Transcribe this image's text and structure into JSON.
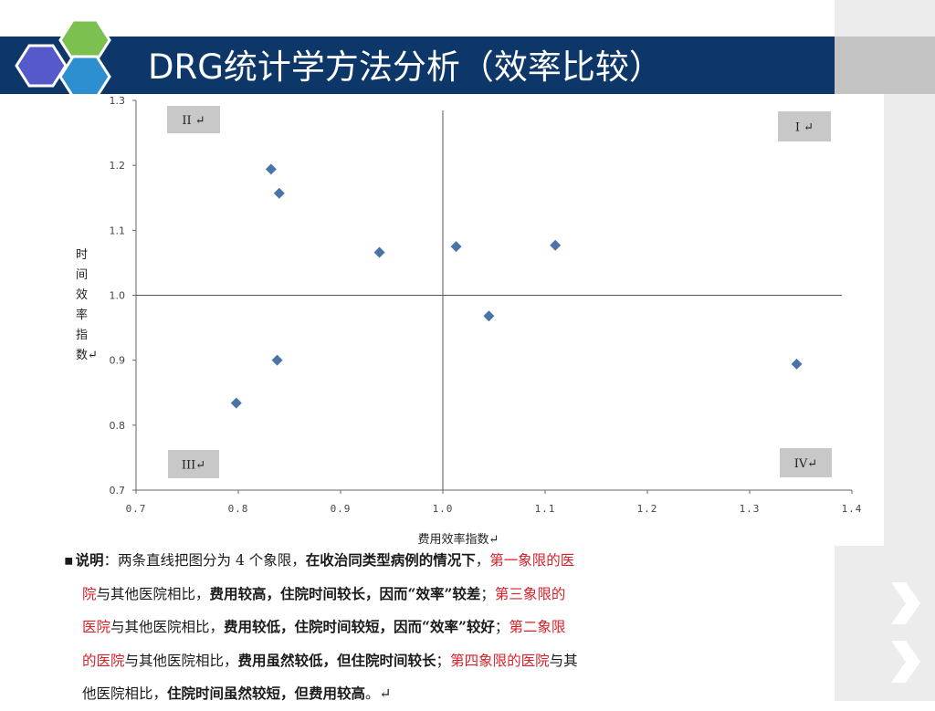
{
  "slide": {
    "title": "DRG统计学方法分析（效率比较）"
  },
  "chart_data": {
    "type": "scatter",
    "xlabel": "费用效率指数↵",
    "ylabel": [
      "时",
      "间",
      "效",
      "率",
      "指",
      "数↵"
    ],
    "xlim": [
      0.7,
      1.4
    ],
    "ylim": [
      0.7,
      1.3
    ],
    "x_ticks": [
      "0.7",
      "0.8",
      "0.9",
      "1.0",
      "1.1",
      "1.2",
      "1.3",
      "1.4"
    ],
    "y_ticks": [
      "0.7",
      "0.8",
      "0.9",
      "1.0",
      "1.1",
      "1.2",
      "1.3"
    ],
    "reference_lines": {
      "x": 1.0,
      "y": 1.0
    },
    "quadrant_labels": {
      "q1": "I ↵",
      "q2": "II ↵",
      "q3": "III↵",
      "q4": "IV↵"
    },
    "points": [
      {
        "x": 0.832,
        "y": 1.194
      },
      {
        "x": 0.84,
        "y": 1.157
      },
      {
        "x": 0.938,
        "y": 1.066
      },
      {
        "x": 1.013,
        "y": 1.075
      },
      {
        "x": 1.11,
        "y": 1.077
      },
      {
        "x": 1.045,
        "y": 0.968
      },
      {
        "x": 1.346,
        "y": 0.894
      },
      {
        "x": 0.838,
        "y": 0.9
      },
      {
        "x": 0.798,
        "y": 0.834
      }
    ],
    "marker_color": "#4a74a8",
    "grid": false
  },
  "note": {
    "bullet": "▪",
    "lines": [
      [
        {
          "t": "说明",
          "s": "b"
        },
        {
          "t": "：两条直线把图分为 4 个象限，",
          "s": ""
        },
        {
          "t": "在收治同类型病例的情况下",
          "s": "b"
        },
        {
          "t": "，",
          "s": ""
        },
        {
          "t": "第一象限的医",
          "s": "red"
        }
      ],
      [
        {
          "t": "院",
          "s": "red"
        },
        {
          "t": "与其他医院相比，",
          "s": ""
        },
        {
          "t": "费用较高，住院时间较长，因而“效率”较差",
          "s": "b"
        },
        {
          "t": "；",
          "s": ""
        },
        {
          "t": "第三象限的",
          "s": "red"
        }
      ],
      [
        {
          "t": "医院",
          "s": "red"
        },
        {
          "t": "与其他医院相比，",
          "s": ""
        },
        {
          "t": "费用较低，住院时间较短，因而“效率”较好",
          "s": "b"
        },
        {
          "t": "；",
          "s": ""
        },
        {
          "t": "第二象限",
          "s": "red"
        }
      ],
      [
        {
          "t": "的医院",
          "s": "red"
        },
        {
          "t": "与其他医院相比，",
          "s": ""
        },
        {
          "t": "费用虽然较低，但住院时间较长",
          "s": "b"
        },
        {
          "t": "；",
          "s": ""
        },
        {
          "t": "第四象限的医院",
          "s": "red"
        },
        {
          "t": "与其",
          "s": ""
        }
      ],
      [
        {
          "t": "他医院相比，",
          "s": ""
        },
        {
          "t": "住院时间虽然较短，但费用较高",
          "s": "b"
        },
        {
          "t": "。↵",
          "s": ""
        }
      ]
    ]
  }
}
